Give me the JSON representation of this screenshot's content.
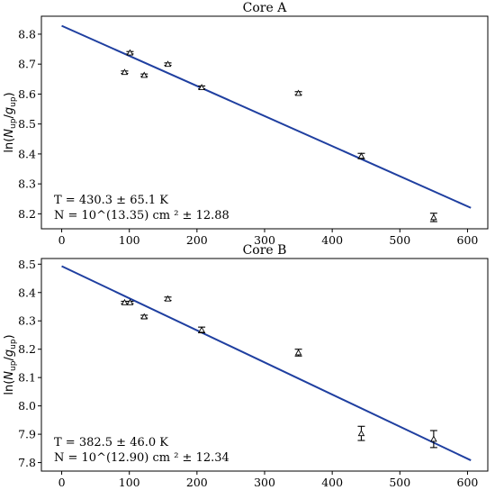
{
  "chart_data": [
    {
      "type": "scatter",
      "title": "Core A",
      "xlabel": "",
      "ylabel": "ln(N_up/g_up)",
      "xlim": [
        -30,
        630
      ],
      "ylim": [
        8.15,
        8.86
      ],
      "xticks": [
        "0",
        "100",
        "200",
        "300",
        "400",
        "500",
        "600"
      ],
      "yticks": [
        "8.2",
        "8.3",
        "8.4",
        "8.5",
        "8.6",
        "8.7",
        "8.8"
      ],
      "points": [
        {
          "x": 93,
          "y": 8.673,
          "err": 0.004
        },
        {
          "x": 101,
          "y": 8.738,
          "err": 0.004
        },
        {
          "x": 122,
          "y": 8.663,
          "err": 0.004
        },
        {
          "x": 157,
          "y": 8.7,
          "err": 0.004
        },
        {
          "x": 207,
          "y": 8.622,
          "err": 0.005
        },
        {
          "x": 350,
          "y": 8.603,
          "err": 0.005
        },
        {
          "x": 443,
          "y": 8.393,
          "err": 0.009
        },
        {
          "x": 550,
          "y": 8.188,
          "err": 0.014
        }
      ],
      "fit": {
        "x": [
          0,
          605
        ],
        "y": [
          8.828,
          8.22
        ]
      },
      "annotation": [
        "T = 430.3 ± 65.1 K",
        "N = 10^(13.35) cm ² ± 12.88"
      ]
    },
    {
      "type": "scatter",
      "title": "Core B",
      "xlabel": "",
      "ylabel": "ln(N_up/g_up)",
      "xlim": [
        -30,
        630
      ],
      "ylim": [
        7.77,
        8.52
      ],
      "xticks": [
        "0",
        "100",
        "200",
        "300",
        "400",
        "500",
        "600"
      ],
      "yticks": [
        "7.8",
        "7.9",
        "8.0",
        "8.1",
        "8.2",
        "8.3",
        "8.4",
        "8.5"
      ],
      "points": [
        {
          "x": 93,
          "y": 8.365,
          "err": 0.004
        },
        {
          "x": 101,
          "y": 8.365,
          "err": 0.004
        },
        {
          "x": 122,
          "y": 8.315,
          "err": 0.005
        },
        {
          "x": 157,
          "y": 8.378,
          "err": 0.006
        },
        {
          "x": 207,
          "y": 8.268,
          "err": 0.01
        },
        {
          "x": 350,
          "y": 8.188,
          "err": 0.012
        },
        {
          "x": 443,
          "y": 7.903,
          "err": 0.025
        },
        {
          "x": 550,
          "y": 7.883,
          "err": 0.03
        }
      ],
      "fit": {
        "x": [
          0,
          605
        ],
        "y": [
          8.493,
          7.808
        ]
      },
      "annotation": [
        "T = 382.5 ± 46.0 K",
        "N = 10^(12.90) cm ² ± 12.34"
      ]
    }
  ]
}
